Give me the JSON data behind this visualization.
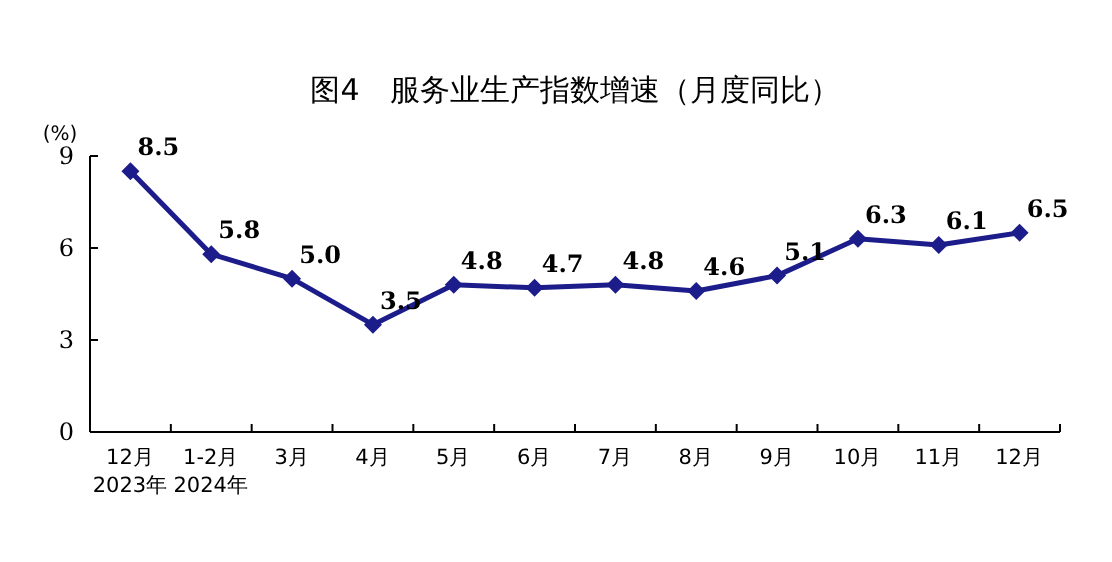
{
  "chart_data": {
    "type": "line",
    "title": "图4　服务业生产指数增速（月度同比）",
    "ylabel": "(%)",
    "categories": [
      "12月\n2023年",
      "1-2月\n2024年",
      "3月",
      "4月",
      "5月",
      "6月",
      "7月",
      "8月",
      "9月",
      "10月",
      "11月",
      "12月"
    ],
    "series": [
      {
        "color": "#1c1c8a",
        "values": [
          8.5,
          5.8,
          5.0,
          3.5,
          4.8,
          4.7,
          4.8,
          4.6,
          5.1,
          6.3,
          6.1,
          6.5
        ],
        "value_labels": [
          "8.5",
          "5.8",
          "5.0",
          "3.5",
          "4.8",
          "4.7",
          "4.8",
          "4.6",
          "5.1",
          "6.3",
          "6.1",
          "6.5"
        ]
      }
    ],
    "ylim": [
      0,
      9
    ],
    "yticks": [
      0,
      3,
      6,
      9
    ],
    "grid": false,
    "marker": "diamond",
    "line_style": "solid"
  }
}
